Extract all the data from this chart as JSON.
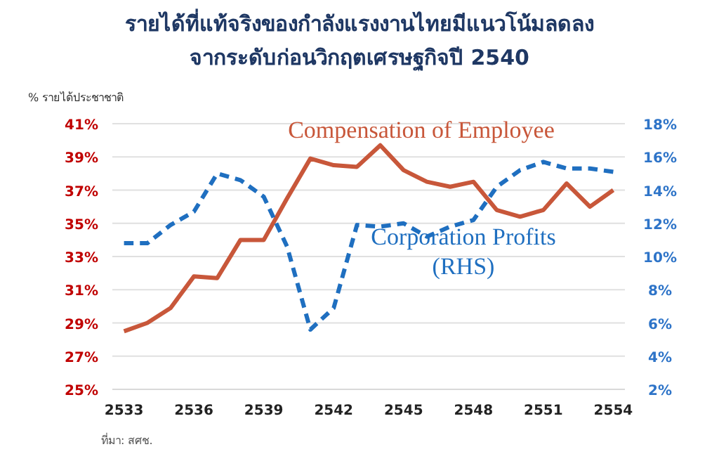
{
  "chart_data": {
    "type": "line",
    "title": "รายได้ที่แท้จริงของกำลังแรงงานไทยมีแนวโน้มลดลง",
    "subtitle": "จากระดับก่อนวิกฤตเศรษฐกิจปี 2540",
    "ylabel": "% รายได้ประชาชาติ",
    "annotations": [
      "ที่มา: สศช."
    ],
    "categories": [
      "2533",
      null,
      null,
      "2536",
      null,
      null,
      "2539",
      null,
      null,
      "2542",
      null,
      null,
      "2545",
      null,
      null,
      "2548",
      null,
      null,
      "2551",
      null,
      null,
      "2554"
    ],
    "series": [
      {
        "name": "Compensation of Employee",
        "color": "#c8573a",
        "line_style": "solid",
        "values": [
          28.5,
          29.0,
          29.9,
          31.8,
          31.7,
          34.0,
          34.0,
          36.5,
          38.9,
          38.5,
          38.4,
          39.7,
          38.2,
          37.5,
          37.2,
          37.5,
          35.8,
          35.4,
          35.8,
          37.4,
          36.0,
          37.0
        ]
      },
      {
        "name": "Corporation Profits (RHS)",
        "color": "#1f6fc0",
        "line_style": "dashed",
        "axis": "y2",
        "values": [
          10.8,
          10.8,
          11.9,
          12.7,
          15.0,
          14.6,
          13.6,
          10.6,
          5.6,
          6.9,
          11.9,
          11.8,
          12.0,
          11.2,
          11.8,
          12.2,
          14.2,
          15.2,
          15.7,
          15.3,
          15.3,
          15.1
        ]
      }
    ],
    "ylim": [
      25,
      41
    ],
    "yticks": [
      {
        "value": 25,
        "label": "25%"
      },
      {
        "value": 27,
        "label": "27%"
      },
      {
        "value": 29,
        "label": "29%"
      },
      {
        "value": 31,
        "label": "31%"
      },
      {
        "value": 33,
        "label": "33%"
      },
      {
        "value": 35,
        "label": "35%"
      },
      {
        "value": 37,
        "label": "37%"
      },
      {
        "value": 39,
        "label": "39%"
      },
      {
        "value": 41,
        "label": "41%"
      }
    ],
    "y2lim": [
      2,
      18
    ],
    "y2ticks": [
      {
        "value": 2,
        "label": "2%"
      },
      {
        "value": 4,
        "label": "4%"
      },
      {
        "value": 6,
        "label": "6%"
      },
      {
        "value": 8,
        "label": "8%"
      },
      {
        "value": 10,
        "label": "10%"
      },
      {
        "value": 12,
        "label": "12%"
      },
      {
        "value": 14,
        "label": "14%"
      },
      {
        "value": 16,
        "label": "16%"
      },
      {
        "value": 18,
        "label": "18%"
      }
    ],
    "grid": "y",
    "marker": "none"
  }
}
